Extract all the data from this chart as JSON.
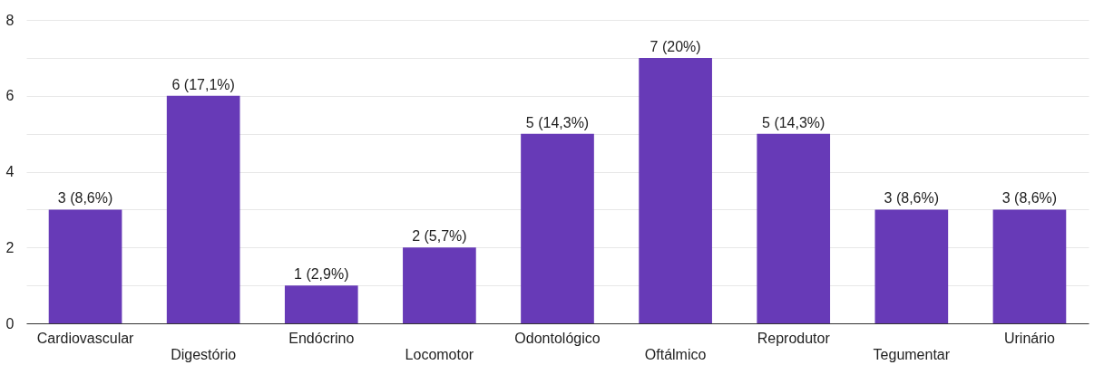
{
  "chart_data": {
    "type": "bar",
    "categories": [
      "Cardiovascular",
      "Digestório",
      "Endócrino",
      "Locomotor",
      "Odontológico",
      "Oftálmico",
      "Reprodutor",
      "Tegumentar",
      "Urinário"
    ],
    "values": [
      3,
      6,
      1,
      2,
      5,
      7,
      5,
      3,
      3
    ],
    "value_labels": [
      "3 (8,6%)",
      "6 (17,1%)",
      "1 (2,9%)",
      "2 (5,7%)",
      "5 (14,3%)",
      "7 (20%)",
      "5 (14,3%)",
      "3 (8,6%)",
      "3 (8,6%)"
    ],
    "color": "#673ab7",
    "ylim": [
      0,
      8
    ],
    "yticks": [
      0,
      {
        "value": 1,
        "label": null
      },
      2,
      {
        "value": 3,
        "label": null
      },
      4,
      {
        "value": 5,
        "label": null
      },
      6,
      {
        "value": 7,
        "label": null
      },
      8
    ],
    "grid": "y"
  }
}
